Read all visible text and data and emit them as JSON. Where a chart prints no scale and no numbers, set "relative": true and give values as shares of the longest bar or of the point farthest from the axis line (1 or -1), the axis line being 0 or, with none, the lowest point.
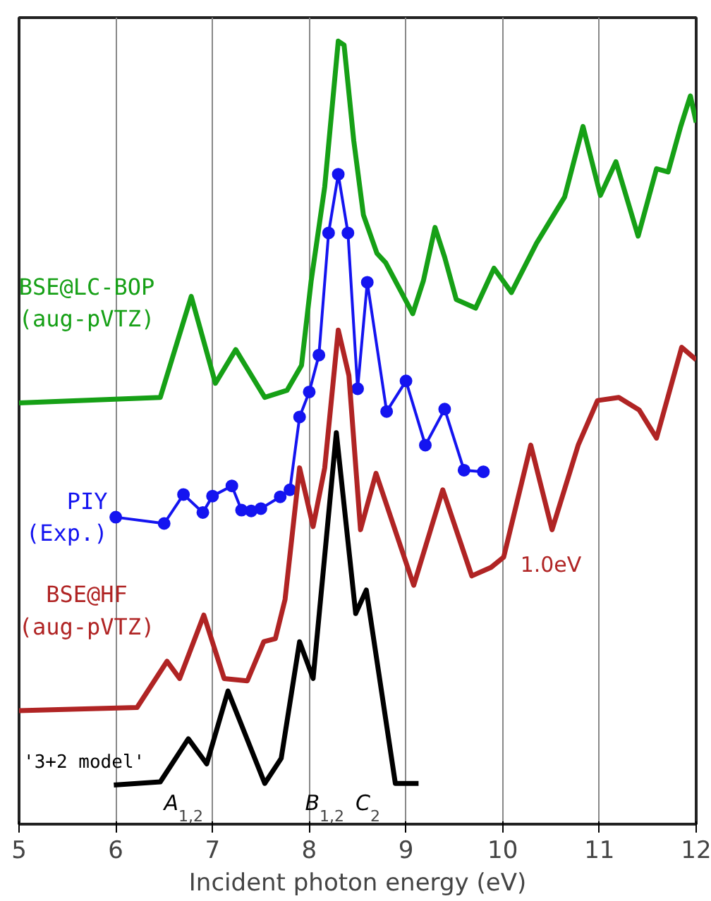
{
  "chart_data": {
    "type": "line",
    "relative": true,
    "xlabel": "Incident photon energy (eV)",
    "xlim": [
      5,
      12
    ],
    "xticks": [
      5,
      6,
      7,
      8,
      9,
      10,
      11,
      12
    ],
    "grid": "x",
    "line_style": "solid",
    "series": [
      {
        "name": "BSE@LC-BOP\n(aug-pVTZ)",
        "color": "#16a016",
        "marker": "none",
        "x": [
          5,
          6.46,
          6.78,
          7.03,
          7.24,
          7.54,
          7.77,
          7.92,
          8.02,
          8.16,
          8.3,
          8.36,
          8.46,
          8.56,
          8.7,
          8.79,
          9.07,
          9.18,
          9.3,
          9.4,
          9.52,
          9.72,
          9.91,
          10.09,
          10.35,
          10.64,
          10.83,
          11.01,
          11.17,
          11.4,
          11.59,
          11.71,
          11.84,
          11.94,
          12
        ],
        "values": [
          0.538,
          0.545,
          0.674,
          0.563,
          0.606,
          0.545,
          0.554,
          0.586,
          0.694,
          0.814,
          1.0,
          0.995,
          0.873,
          0.778,
          0.729,
          0.717,
          0.652,
          0.694,
          0.762,
          0.724,
          0.67,
          0.659,
          0.71,
          0.679,
          0.742,
          0.801,
          0.891,
          0.803,
          0.846,
          0.751,
          0.837,
          0.833,
          0.891,
          0.93,
          0.896
        ]
      },
      {
        "name": "PIY\n(Exp.)",
        "color": "#1414f0",
        "marker": "circle",
        "x": [
          6.0,
          6.5,
          6.7,
          6.9,
          7.0,
          7.2,
          7.3,
          7.4,
          7.5,
          7.7,
          7.8,
          7.9,
          8.0,
          8.1,
          8.2,
          8.3,
          8.4,
          8.5,
          8.6,
          8.8,
          9.0,
          9.2,
          9.4,
          9.6,
          9.8
        ],
        "values": [
          0.392,
          0.384,
          0.421,
          0.398,
          0.419,
          0.432,
          0.401,
          0.4,
          0.403,
          0.418,
          0.427,
          0.52,
          0.552,
          0.599,
          0.755,
          0.83,
          0.755,
          0.556,
          0.692,
          0.527,
          0.566,
          0.484,
          0.53,
          0.452,
          0.45
        ]
      },
      {
        "name": "BSE@HF\n(aug-pVTZ)",
        "color": "#b02424",
        "marker": "none",
        "x": [
          5,
          6.22,
          6.53,
          6.66,
          6.91,
          7.12,
          7.36,
          7.53,
          7.65,
          7.75,
          7.9,
          8.04,
          8.16,
          8.3,
          8.41,
          8.53,
          8.69,
          9.08,
          9.38,
          9.68,
          9.88,
          10.01,
          10.29,
          10.51,
          10.78,
          10.98,
          11.2,
          11.41,
          11.59,
          11.85,
          12
        ],
        "values": [
          0.145,
          0.149,
          0.208,
          0.186,
          0.267,
          0.186,
          0.183,
          0.233,
          0.237,
          0.287,
          0.455,
          0.38,
          0.455,
          0.631,
          0.573,
          0.376,
          0.448,
          0.305,
          0.427,
          0.317,
          0.328,
          0.341,
          0.484,
          0.376,
          0.484,
          0.541,
          0.545,
          0.529,
          0.493,
          0.609,
          0.593
        ]
      },
      {
        "name": "'3+2 model'",
        "color": "#000000",
        "marker": "none",
        "x": [
          5.98,
          6.46,
          6.75,
          6.94,
          7.16,
          7.54,
          7.71,
          7.9,
          8.04,
          8.28,
          8.48,
          8.59,
          8.89,
          9.13
        ],
        "values": [
          0.05,
          0.054,
          0.109,
          0.077,
          0.17,
          0.052,
          0.084,
          0.233,
          0.186,
          0.5,
          0.269,
          0.299,
          0.052,
          0.052
        ]
      }
    ],
    "annotations": [
      "A$_{1,2}$",
      "B$_{1,2}$",
      "C$_{2}$",
      "1.0eV"
    ]
  }
}
